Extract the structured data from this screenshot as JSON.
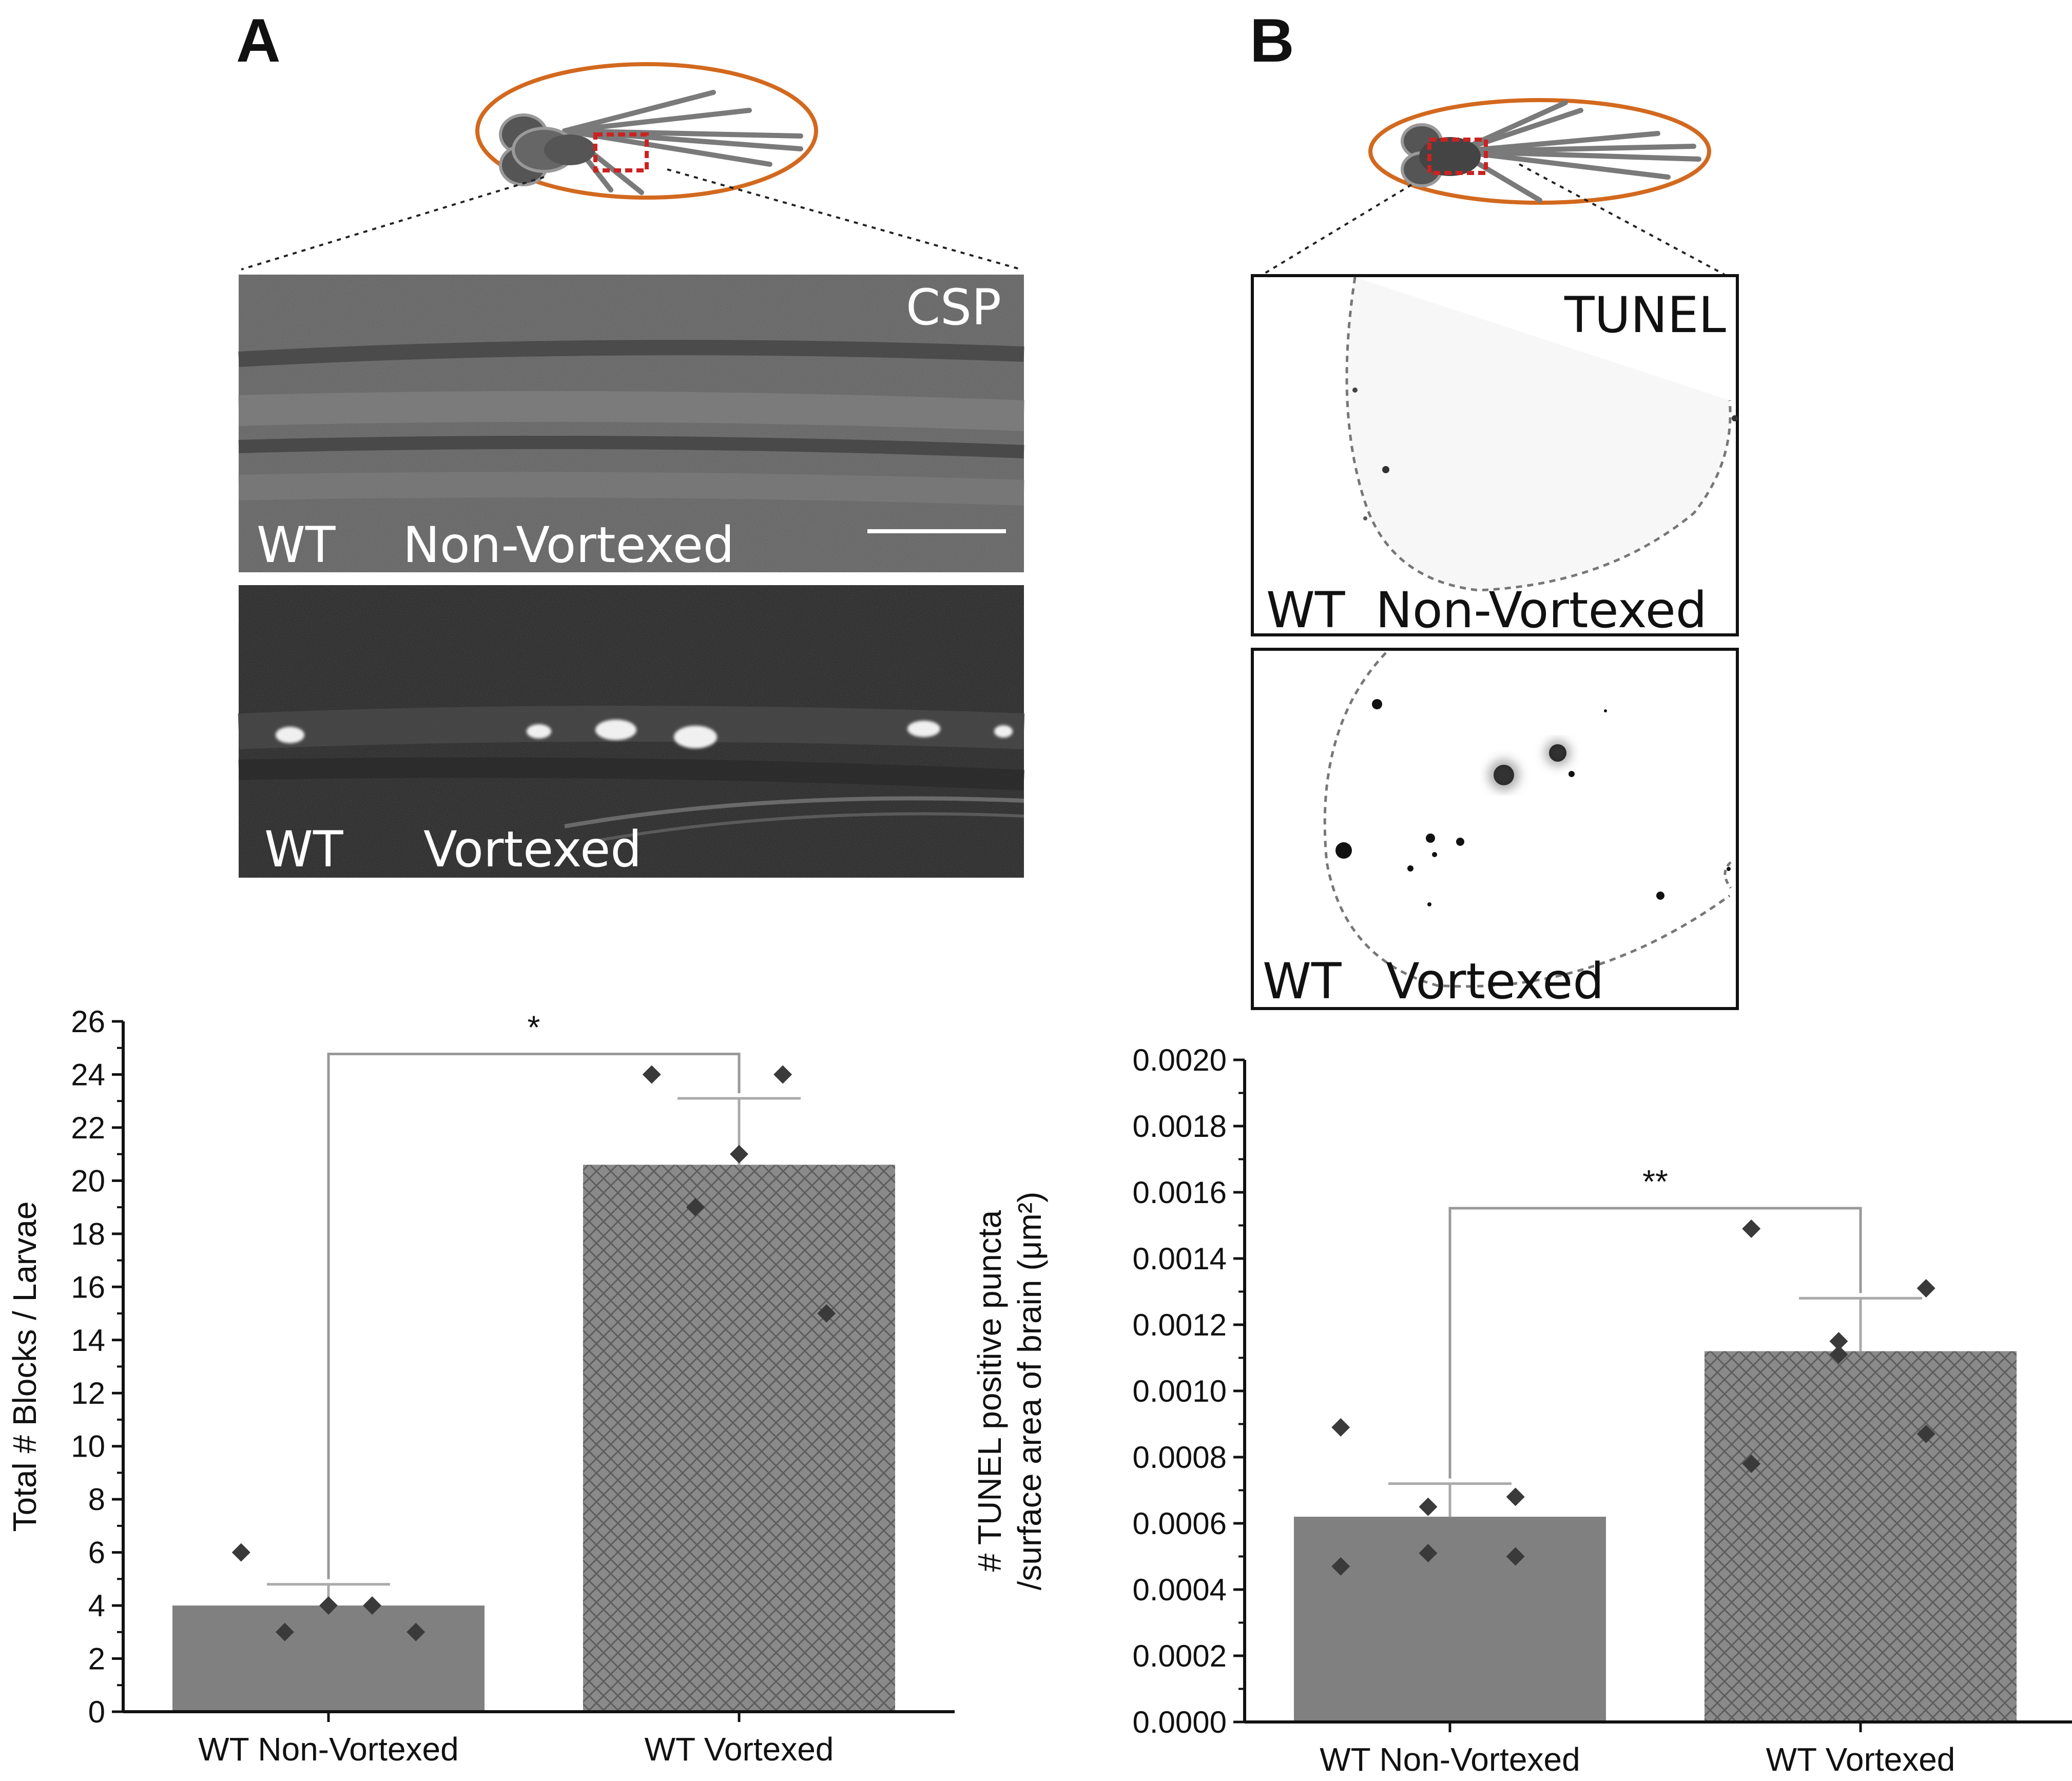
{
  "panels": {
    "a": {
      "letter": "A",
      "stain_label": "CSP",
      "top_image": {
        "genotype": "WT",
        "condition": "Non-Vortexed"
      },
      "bottom_image": {
        "genotype": "WT",
        "condition": "Vortexed"
      }
    },
    "b": {
      "letter": "B",
      "stain_label": "TUNEL",
      "top_image": {
        "genotype": "WT",
        "condition": "Non-Vortexed"
      },
      "bottom_image": {
        "genotype": "WT",
        "condition": "Vortexed"
      }
    }
  },
  "colors": {
    "bar_fill": "#808080",
    "marker": "#3a3a3a",
    "larva_outline": "#d2691e",
    "roi_box": "#cc2222"
  },
  "chart_data": [
    {
      "type": "bar",
      "categories": [
        "WT Non-Vortexed",
        "WT Vortexed"
      ],
      "values": [
        4.0,
        20.6
      ],
      "errors": [
        0.8,
        2.5
      ],
      "points": [
        [
          6,
          4,
          4,
          3,
          3
        ],
        [
          24,
          24,
          21,
          19,
          15
        ]
      ],
      "ylabel": "Total # Blocks / Larvae",
      "ylim": [
        0,
        26
      ],
      "yticks": [
        "0",
        "2",
        "4",
        "6",
        "8",
        "10",
        "12",
        "14",
        "16",
        "18",
        "20",
        "22",
        "24",
        "26"
      ],
      "significance": "*",
      "hatched": [
        false,
        true
      ]
    },
    {
      "type": "bar",
      "categories": [
        "WT Non-Vortexed",
        "WT Vortexed"
      ],
      "values": [
        0.00062,
        0.00112
      ],
      "errors": [
        0.0001,
        0.00016
      ],
      "points": [
        [
          0.00089,
          0.00068,
          0.00065,
          0.00051,
          0.0005,
          0.00047
        ],
        [
          0.00149,
          0.00131,
          0.00115,
          0.00111,
          0.00087,
          0.00078
        ]
      ],
      "ylabel_lines": [
        "# TUNEL positive puncta",
        "/surface area of brain (μm²)"
      ],
      "ylim": [
        0,
        0.002
      ],
      "yticks": [
        "0.0000",
        "0.0002",
        "0.0004",
        "0.0006",
        "0.0008",
        "0.0010",
        "0.0012",
        "0.0014",
        "0.0016",
        "0.0018",
        "0.0020"
      ],
      "significance": "**",
      "hatched": [
        false,
        true
      ]
    }
  ]
}
